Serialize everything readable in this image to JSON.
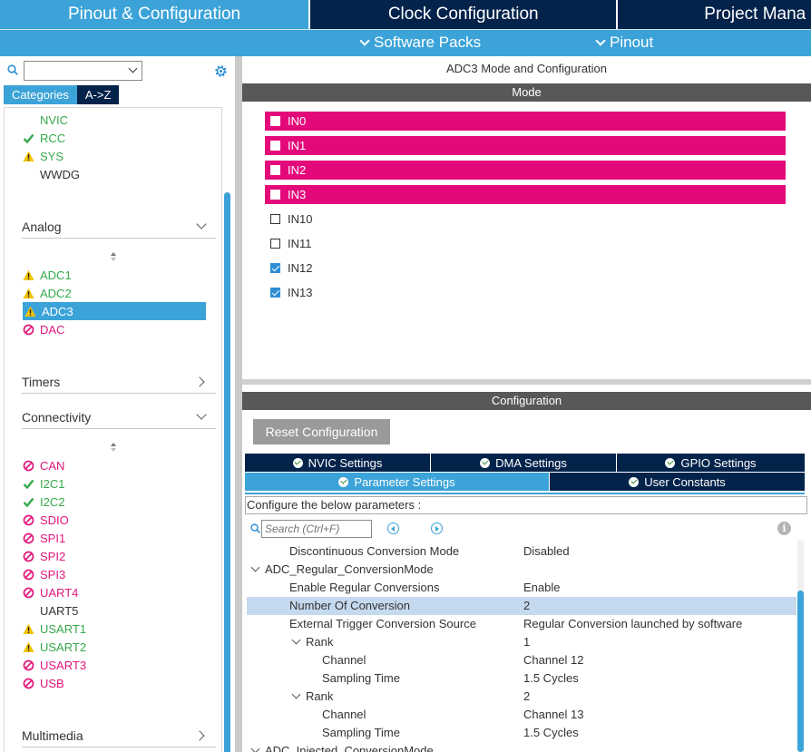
{
  "top_tabs": [
    "Pinout & Configuration",
    "Clock Configuration",
    "Project Mana"
  ],
  "subbar": {
    "software_packs": "Software Packs",
    "pinout": "Pinout"
  },
  "left": {
    "search_value": "",
    "tabs": {
      "categories": "Categories",
      "az": "A->Z"
    },
    "system_items": [
      {
        "label": "NVIC",
        "status": "none",
        "color": "green"
      },
      {
        "label": "RCC",
        "status": "check",
        "color": "green"
      },
      {
        "label": "SYS",
        "status": "warning",
        "color": "green"
      },
      {
        "label": "WWDG",
        "status": "none",
        "color": "plain"
      }
    ],
    "groups": {
      "analog": "Analog",
      "timers": "Timers",
      "connectivity": "Connectivity",
      "multimedia": "Multimedia"
    },
    "analog_items": [
      {
        "label": "ADC1",
        "status": "warning",
        "color": "green"
      },
      {
        "label": "ADC2",
        "status": "warning",
        "color": "green"
      },
      {
        "label": "ADC3",
        "status": "warning",
        "color": "selected"
      },
      {
        "label": "DAC",
        "status": "disabled",
        "color": "pink"
      }
    ],
    "connectivity_items": [
      {
        "label": "CAN",
        "status": "disabled",
        "color": "pink"
      },
      {
        "label": "I2C1",
        "status": "check",
        "color": "green"
      },
      {
        "label": "I2C2",
        "status": "check",
        "color": "green"
      },
      {
        "label": "SDIO",
        "status": "disabled",
        "color": "pink"
      },
      {
        "label": "SPI1",
        "status": "disabled",
        "color": "pink"
      },
      {
        "label": "SPI2",
        "status": "disabled",
        "color": "pink"
      },
      {
        "label": "SPI3",
        "status": "disabled",
        "color": "pink"
      },
      {
        "label": "UART4",
        "status": "disabled",
        "color": "pink"
      },
      {
        "label": "UART5",
        "status": "none",
        "color": "plain"
      },
      {
        "label": "USART1",
        "status": "warning",
        "color": "green"
      },
      {
        "label": "USART2",
        "status": "warning",
        "color": "green"
      },
      {
        "label": "USART3",
        "status": "disabled",
        "color": "pink"
      },
      {
        "label": "USB",
        "status": "disabled",
        "color": "pink"
      }
    ]
  },
  "right": {
    "title": "ADC3 Mode and Configuration",
    "mode_header": "Mode",
    "mode_inputs": [
      {
        "label": "IN0",
        "checked": false,
        "pink": true
      },
      {
        "label": "IN1",
        "checked": false,
        "pink": true
      },
      {
        "label": "IN2",
        "checked": false,
        "pink": true
      },
      {
        "label": "IN3",
        "checked": false,
        "pink": true
      },
      {
        "label": "IN10",
        "checked": false,
        "pink": false
      },
      {
        "label": "IN11",
        "checked": false,
        "pink": false
      },
      {
        "label": "IN12",
        "checked": true,
        "pink": false
      },
      {
        "label": "IN13",
        "checked": true,
        "pink": false
      }
    ],
    "config_header": "Configuration",
    "reset_label": "Reset Configuration",
    "tabs_row1": [
      "NVIC Settings",
      "DMA Settings",
      "GPIO Settings"
    ],
    "tabs_row2": [
      "Parameter Settings",
      "User Constants"
    ],
    "configure_text": "Configure the below parameters :",
    "search_placeholder": "Search (Ctrl+F)",
    "params": [
      {
        "key": "Discontinuous Conversion Mode",
        "value": "Disabled",
        "indent": 2,
        "toggle": false,
        "hl": false
      },
      {
        "key": "ADC_Regular_ConversionMode",
        "value": "",
        "indent": 1,
        "toggle": true,
        "hl": false
      },
      {
        "key": "Enable Regular Conversions",
        "value": "Enable",
        "indent": 2,
        "toggle": false,
        "hl": false
      },
      {
        "key": "Number Of Conversion",
        "value": "2",
        "indent": 2,
        "toggle": false,
        "hl": true
      },
      {
        "key": "External Trigger Conversion Source",
        "value": "Regular Conversion launched by software",
        "indent": 2,
        "toggle": false,
        "hl": false
      },
      {
        "key": "Rank",
        "value": "1",
        "indent": 3,
        "toggle": true,
        "hl": false
      },
      {
        "key": "Channel",
        "value": "Channel 12",
        "indent": 4,
        "toggle": false,
        "hl": false
      },
      {
        "key": "Sampling Time",
        "value": "1.5 Cycles",
        "indent": 4,
        "toggle": false,
        "hl": false
      },
      {
        "key": "Rank",
        "value": "2",
        "indent": 3,
        "toggle": true,
        "hl": false
      },
      {
        "key": "Channel",
        "value": "Channel 13",
        "indent": 4,
        "toggle": false,
        "hl": false
      },
      {
        "key": "Sampling Time",
        "value": "1.5 Cycles",
        "indent": 4,
        "toggle": false,
        "hl": false
      },
      {
        "key": "ADC_Injected_ConversionMode",
        "value": "",
        "indent": 1,
        "toggle": true,
        "hl": false
      }
    ]
  },
  "colors": {
    "accent": "#3ca3d8",
    "navy": "#03234b",
    "pink": "#e4097a",
    "green": "#35a94b"
  }
}
